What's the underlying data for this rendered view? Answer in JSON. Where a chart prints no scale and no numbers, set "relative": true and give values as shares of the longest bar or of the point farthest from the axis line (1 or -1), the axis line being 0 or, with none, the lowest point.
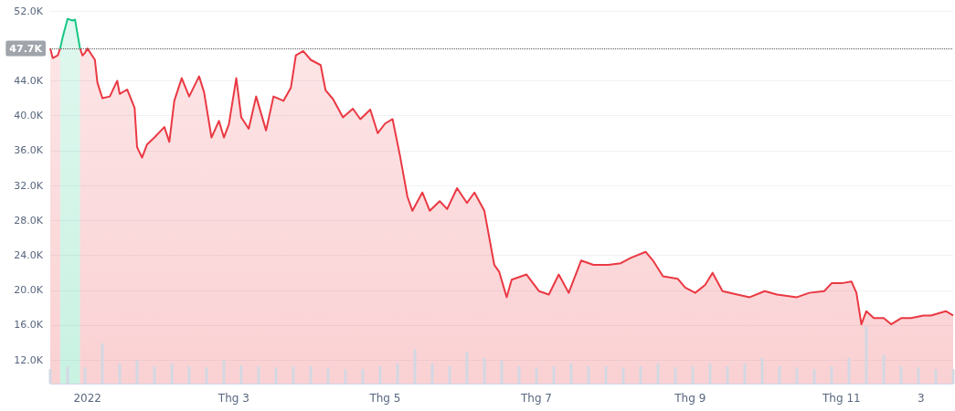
{
  "chart_data": [
    {
      "type": "area",
      "marker": "none",
      "grid": "y",
      "xlim": [
        "2021-12-17",
        "2022-12-16"
      ],
      "xticks": [
        {
          "value": "2022-01-01",
          "label": "2022"
        },
        {
          "value": "2022-03-01",
          "label": "Thg 3"
        },
        {
          "value": "2022-05-01",
          "label": "Thg 5"
        },
        {
          "value": "2022-07-01",
          "label": "Thg 7"
        },
        {
          "value": "2022-09-01",
          "label": "Thg 9"
        },
        {
          "value": "2022-11-01",
          "label": "Thg 11"
        },
        {
          "value": "2022-12-03",
          "label": "3"
        }
      ],
      "ylim": [
        9.3,
        52
      ],
      "yticks": [
        {
          "value": 12,
          "label": "12.0K"
        },
        {
          "value": 16,
          "label": "16.0K"
        },
        {
          "value": 20,
          "label": "20.0K"
        },
        {
          "value": 24,
          "label": "24.0K"
        },
        {
          "value": 28,
          "label": "28.0K"
        },
        {
          "value": 32,
          "label": "32.0K"
        },
        {
          "value": 36,
          "label": "36.0K"
        },
        {
          "value": 40,
          "label": "40.0K"
        },
        {
          "value": 44,
          "label": "44.0K"
        },
        {
          "value": 52,
          "label": "52.0K"
        }
      ],
      "ref_lines": [
        {
          "axis": "y",
          "value": 47.7,
          "label": "47.7K",
          "color": "#555555",
          "line_style": "dotted"
        }
      ],
      "series": [
        {
          "color": "#ea3943",
          "x": [
            "2021-12-17",
            "2021-12-18",
            "2021-12-20",
            "2021-12-21"
          ],
          "values": [
            47.7,
            46.6,
            46.9,
            47.7
          ]
        },
        {
          "color": "#16c784",
          "x": [
            "2021-12-21",
            "2021-12-22",
            "2021-12-24",
            "2021-12-26",
            "2021-12-27",
            "2021-12-29"
          ],
          "values": [
            47.7,
            49.0,
            51.1,
            50.9,
            51.0,
            47.7
          ]
        },
        {
          "color": "#ea3943",
          "x": [
            "2021-12-29",
            "2021-12-30",
            "2021-12-31",
            "2022-01-01",
            "2022-01-04",
            "2022-01-05",
            "2022-01-07",
            "2022-01-10",
            "2022-01-13",
            "2022-01-14",
            "2022-01-17",
            "2022-01-20",
            "2022-01-21",
            "2022-01-23",
            "2022-01-25",
            "2022-01-28",
            "2022-02-01",
            "2022-02-03",
            "2022-02-05",
            "2022-02-08",
            "2022-02-11",
            "2022-02-15",
            "2022-02-17",
            "2022-02-20",
            "2022-02-23",
            "2022-02-25",
            "2022-02-27",
            "2022-03-02",
            "2022-03-04",
            "2022-03-07",
            "2022-03-10",
            "2022-03-14",
            "2022-03-17",
            "2022-03-21",
            "2022-03-24",
            "2022-03-26",
            "2022-03-29",
            "2022-04-01",
            "2022-04-05",
            "2022-04-07",
            "2022-04-10",
            "2022-04-14",
            "2022-04-18",
            "2022-04-21",
            "2022-04-25",
            "2022-04-28",
            "2022-05-01",
            "2022-05-04",
            "2022-05-07",
            "2022-05-10",
            "2022-05-12",
            "2022-05-16",
            "2022-05-19",
            "2022-05-23",
            "2022-05-26",
            "2022-05-30",
            "2022-06-03",
            "2022-06-06",
            "2022-06-10",
            "2022-06-14",
            "2022-06-16",
            "2022-06-19",
            "2022-06-21",
            "2022-06-27",
            "2022-07-02",
            "2022-07-06",
            "2022-07-10",
            "2022-07-14",
            "2022-07-19",
            "2022-07-24",
            "2022-07-30",
            "2022-08-04",
            "2022-08-08",
            "2022-08-14",
            "2022-08-17",
            "2022-08-21",
            "2022-08-27",
            "2022-08-30",
            "2022-09-03",
            "2022-09-07",
            "2022-09-10",
            "2022-09-14",
            "2022-09-20",
            "2022-09-25",
            "2022-10-01",
            "2022-10-06",
            "2022-10-14",
            "2022-10-19",
            "2022-10-25",
            "2022-10-28",
            "2022-11-01",
            "2022-11-05",
            "2022-11-07",
            "2022-11-09",
            "2022-11-11",
            "2022-11-14",
            "2022-11-18",
            "2022-11-21",
            "2022-11-25",
            "2022-11-29",
            "2022-12-04",
            "2022-12-07",
            "2022-12-13",
            "2022-12-16"
          ],
          "values": [
            47.7,
            46.9,
            47.2,
            47.7,
            46.4,
            43.8,
            42.0,
            42.2,
            44.0,
            42.5,
            43.0,
            40.9,
            36.4,
            35.2,
            36.7,
            37.5,
            38.7,
            37.0,
            41.7,
            44.3,
            42.2,
            44.5,
            42.7,
            37.5,
            39.4,
            37.5,
            39.0,
            44.3,
            39.8,
            38.5,
            42.2,
            38.3,
            42.2,
            41.7,
            43.2,
            46.9,
            47.4,
            46.4,
            45.8,
            42.9,
            41.9,
            39.8,
            40.8,
            39.6,
            40.7,
            38.0,
            39.1,
            39.6,
            35.4,
            30.7,
            29.1,
            31.2,
            29.1,
            30.2,
            29.3,
            31.7,
            30.0,
            31.2,
            29.1,
            22.9,
            22.1,
            19.2,
            21.2,
            21.8,
            19.9,
            19.5,
            21.8,
            19.7,
            23.4,
            22.9,
            22.9,
            23.1,
            23.7,
            24.4,
            23.4,
            21.6,
            21.3,
            20.3,
            19.7,
            20.6,
            22.0,
            19.9,
            19.5,
            19.2,
            19.9,
            19.5,
            19.2,
            19.7,
            19.9,
            20.8,
            20.8,
            21.0,
            19.7,
            16.1,
            17.6,
            16.8,
            16.8,
            16.1,
            16.8,
            16.8,
            17.1,
            17.1,
            17.6,
            17.1
          ]
        }
      ]
    },
    {
      "type": "bar",
      "relative": true,
      "tick_labels": false,
      "color": "#d3d8e2",
      "xlim": [
        "2021-12-17",
        "2022-12-16"
      ],
      "x": [
        "2021-12-17",
        "2021-12-24",
        "2021-12-31",
        "2022-01-07",
        "2022-01-14",
        "2022-01-21",
        "2022-01-28",
        "2022-02-04",
        "2022-02-11",
        "2022-02-18",
        "2022-02-25",
        "2022-03-04",
        "2022-03-11",
        "2022-03-18",
        "2022-03-25",
        "2022-04-01",
        "2022-04-08",
        "2022-04-15",
        "2022-04-22",
        "2022-04-29",
        "2022-05-06",
        "2022-05-13",
        "2022-05-20",
        "2022-05-27",
        "2022-06-03",
        "2022-06-10",
        "2022-06-17",
        "2022-06-24",
        "2022-07-01",
        "2022-07-08",
        "2022-07-15",
        "2022-07-22",
        "2022-07-29",
        "2022-08-05",
        "2022-08-12",
        "2022-08-19",
        "2022-08-26",
        "2022-09-02",
        "2022-09-09",
        "2022-09-16",
        "2022-09-23",
        "2022-09-30",
        "2022-10-07",
        "2022-10-14",
        "2022-10-21",
        "2022-10-28",
        "2022-11-04",
        "2022-11-11",
        "2022-11-18",
        "2022-11-25",
        "2022-12-02",
        "2022-12-09",
        "2022-12-16"
      ],
      "values": [
        0.25,
        0.3,
        0.28,
        0.7,
        0.35,
        0.4,
        0.3,
        0.35,
        0.3,
        0.28,
        0.4,
        0.32,
        0.3,
        0.28,
        0.3,
        0.3,
        0.28,
        0.25,
        0.25,
        0.3,
        0.35,
        0.6,
        0.35,
        0.3,
        0.55,
        0.45,
        0.4,
        0.3,
        0.28,
        0.3,
        0.35,
        0.3,
        0.3,
        0.28,
        0.3,
        0.35,
        0.28,
        0.3,
        0.35,
        0.3,
        0.35,
        0.45,
        0.3,
        0.28,
        0.25,
        0.3,
        0.45,
        1,
        0.5,
        0.3,
        0.28,
        0.25,
        0.25
      ]
    }
  ]
}
